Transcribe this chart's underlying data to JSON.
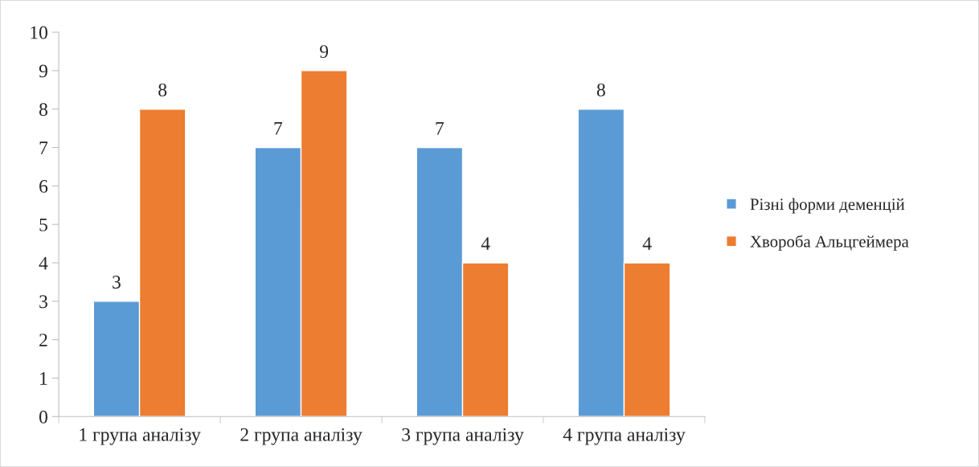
{
  "chart_data": {
    "type": "bar",
    "categories": [
      "1 група аналізу",
      "2 група аналізу",
      "3 група аналізу",
      "4 група аналізу"
    ],
    "series": [
      {
        "name": "Різні форми деменцій",
        "color": "#5b9bd5",
        "values": [
          3,
          7,
          7,
          8
        ]
      },
      {
        "name": "Хвороба Альцгеймера",
        "color": "#ed7d31",
        "values": [
          8,
          9,
          4,
          4
        ]
      }
    ],
    "ylim": [
      0,
      10
    ],
    "yticks": [
      0,
      1,
      2,
      3,
      4,
      5,
      6,
      7,
      8,
      9,
      10
    ],
    "data_labels": true,
    "grid": false,
    "legend": "right"
  }
}
